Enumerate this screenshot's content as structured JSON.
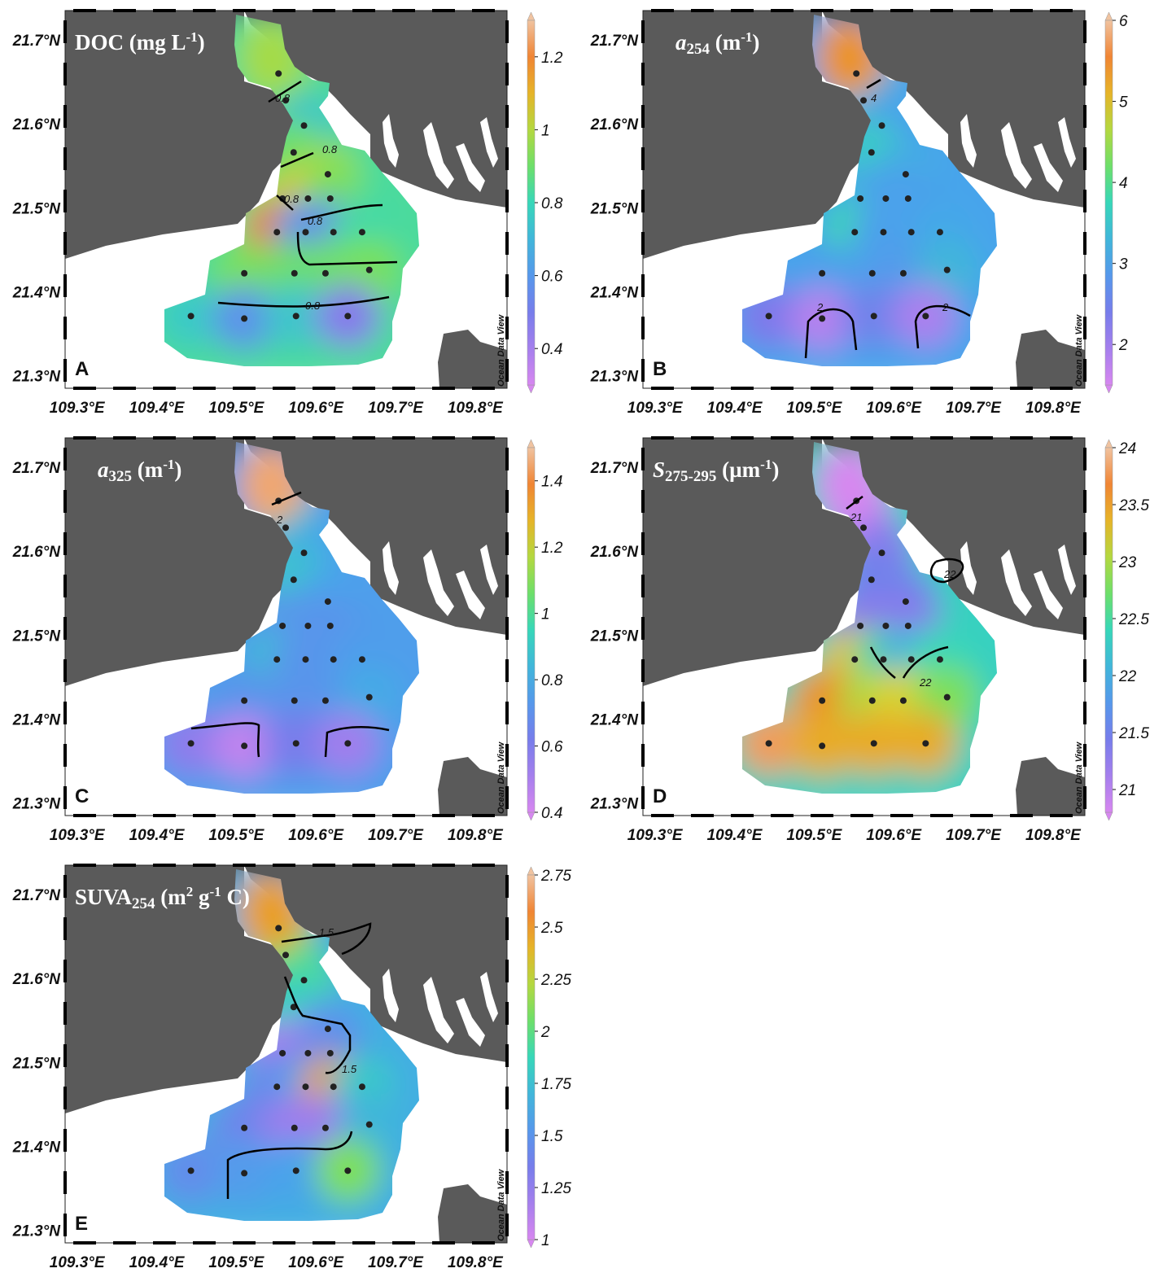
{
  "figure": {
    "x_ticks": [
      "109.3°E",
      "109.4°E",
      "109.5°E",
      "109.6°E",
      "109.7°E",
      "109.8°E"
    ],
    "y_ticks": [
      "21.3°N",
      "21.4°N",
      "21.5°N",
      "21.6°N",
      "21.7°N"
    ],
    "watermark": "Ocean Data View",
    "colors": {
      "land": "#5a5a5a",
      "water_background": "#ffffff",
      "station": "#222222",
      "contour": "#000000"
    },
    "stations": [
      {
        "lon": 109.553,
        "lat": 21.66
      },
      {
        "lon": 109.562,
        "lat": 21.628
      },
      {
        "lon": 109.585,
        "lat": 21.598
      },
      {
        "lon": 109.572,
        "lat": 21.566
      },
      {
        "lon": 109.615,
        "lat": 21.54
      },
      {
        "lon": 109.558,
        "lat": 21.511
      },
      {
        "lon": 109.59,
        "lat": 21.511
      },
      {
        "lon": 109.618,
        "lat": 21.511
      },
      {
        "lon": 109.551,
        "lat": 21.471
      },
      {
        "lon": 109.587,
        "lat": 21.471
      },
      {
        "lon": 109.622,
        "lat": 21.471
      },
      {
        "lon": 109.658,
        "lat": 21.471
      },
      {
        "lon": 109.51,
        "lat": 21.422
      },
      {
        "lon": 109.573,
        "lat": 21.422
      },
      {
        "lon": 109.612,
        "lat": 21.422
      },
      {
        "lon": 109.667,
        "lat": 21.426
      },
      {
        "lon": 109.443,
        "lat": 21.371
      },
      {
        "lon": 109.51,
        "lat": 21.368
      },
      {
        "lon": 109.575,
        "lat": 21.371
      },
      {
        "lon": 109.64,
        "lat": 21.371
      }
    ]
  },
  "panels": [
    {
      "id": "A",
      "letter": "A",
      "title_main": "DOC (mg L",
      "title_sup": "-1",
      "title_end": ")",
      "colorbar": {
        "min": 0.3,
        "max": 1.3,
        "ticks": [
          "1.2",
          "1",
          "0.8",
          "0.6",
          "0.4"
        ],
        "tick_values": [
          1.2,
          1.0,
          0.8,
          0.6,
          0.4
        ]
      },
      "contour_labels": [
        "0.8",
        "0.8",
        "0.8",
        "0.8",
        "0.8"
      ],
      "station_values": [
        0.98,
        0.88,
        0.74,
        0.9,
        0.96,
        0.95,
        1.08,
        0.92,
        1.18,
        0.62,
        0.52,
        0.82,
        0.92,
        0.9,
        0.9,
        0.92,
        0.76,
        0.58,
        0.75,
        0.46
      ]
    },
    {
      "id": "B",
      "letter": "B",
      "title_main": "a",
      "title_sub": "254",
      "title_end": " (m",
      "title_sup": "-1",
      "title_close": ")",
      "colorbar": {
        "min": 1.5,
        "max": 6.0,
        "ticks": [
          "6",
          "5",
          "4",
          "3",
          "2"
        ],
        "tick_values": [
          6,
          5,
          4,
          3,
          2
        ]
      },
      "contour_labels": [
        "4",
        "2",
        "2"
      ],
      "station_values": [
        5.3,
        3.4,
        3.0,
        3.6,
        3.2,
        3.2,
        3.0,
        3.0,
        3.8,
        3.0,
        3.0,
        3.1,
        3.0,
        3.0,
        2.9,
        3.3,
        2.3,
        1.8,
        2.5,
        1.9
      ]
    },
    {
      "id": "C",
      "letter": "C",
      "title_main": "a",
      "title_sub": "325",
      "title_end": " (m",
      "title_sup": "-1",
      "title_close": ")",
      "colorbar": {
        "min": 0.4,
        "max": 1.5,
        "ticks": [
          "1.4",
          "1.2",
          "1",
          "0.8",
          "0.6",
          "0.4"
        ],
        "tick_values": [
          1.4,
          1.2,
          1.0,
          0.8,
          0.6,
          0.4
        ]
      },
      "contour_labels": [
        "2"
      ],
      "station_values": [
        1.45,
        0.9,
        0.8,
        0.88,
        0.78,
        0.72,
        0.72,
        0.72,
        0.85,
        0.72,
        0.72,
        0.75,
        0.72,
        0.72,
        0.72,
        0.8,
        0.56,
        0.45,
        0.62,
        0.52
      ]
    },
    {
      "id": "D",
      "letter": "D",
      "title_main": "S",
      "title_sub": "275-295",
      "title_end": " (µm",
      "title_sup": "-1",
      "title_close": ")",
      "colorbar": {
        "min": 20.8,
        "max": 24.0,
        "ticks": [
          "24",
          "23.5",
          "23",
          "22.5",
          "22",
          "21.5",
          "21"
        ],
        "tick_values": [
          24,
          23.5,
          23,
          22.5,
          22,
          21.5,
          21
        ]
      },
      "contour_labels": [
        "21",
        "22",
        "22"
      ],
      "station_values": [
        20.8,
        21.0,
        21.3,
        21.5,
        21.5,
        21.3,
        21.3,
        21.3,
        23.3,
        22.5,
        22.0,
        22.4,
        23.5,
        23.0,
        23.2,
        22.8,
        23.8,
        23.4,
        23.4,
        23.4
      ]
    },
    {
      "id": "E",
      "letter": "E",
      "title_main": "SUVA",
      "title_sub": "254",
      "title_end": " (m",
      "title_sup2": "2",
      "title_mid": " g",
      "title_sup": "-1",
      "title_close": " C)",
      "colorbar": {
        "min": 1.0,
        "max": 2.75,
        "ticks": [
          "2.75",
          "2.5",
          "2.25",
          "2",
          "1.75",
          "1.5",
          "1.25",
          "1"
        ],
        "tick_values": [
          2.75,
          2.5,
          2.25,
          2.0,
          1.75,
          1.5,
          1.25,
          1.0
        ]
      },
      "contour_labels": [
        "1.5",
        "1.5"
      ],
      "station_values": [
        2.45,
        2.1,
        1.95,
        1.85,
        1.55,
        1.15,
        1.2,
        1.45,
        1.4,
        1.6,
        2.45,
        1.8,
        1.4,
        1.2,
        1.2,
        1.7,
        1.45,
        1.55,
        1.6,
        2.1
      ]
    }
  ]
}
